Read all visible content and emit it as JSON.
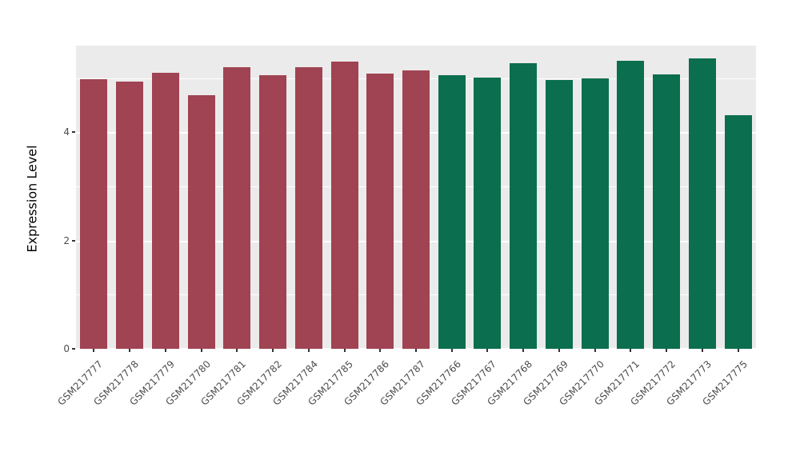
{
  "chart_data": {
    "type": "bar",
    "title": "",
    "xlabel": "",
    "ylabel": "Expression Level",
    "ylim": [
      0,
      5.6
    ],
    "yticks": [
      0,
      2,
      4
    ],
    "yminor": [
      1,
      3,
      5
    ],
    "grid": true,
    "legend_position": "none",
    "panel_background": "#EBEBEB",
    "grid_color": "#FFFFFF",
    "categories": [
      "GSM217777",
      "GSM217778",
      "GSM217779",
      "GSM217780",
      "GSM217781",
      "GSM217782",
      "GSM217784",
      "GSM217785",
      "GSM217786",
      "GSM217787",
      "GSM217766",
      "GSM217767",
      "GSM217768",
      "GSM217769",
      "GSM217770",
      "GSM217771",
      "GSM217772",
      "GSM217773",
      "GSM217775"
    ],
    "values": [
      4.98,
      4.94,
      5.1,
      4.69,
      5.2,
      5.05,
      5.2,
      5.3,
      5.08,
      5.14,
      5.05,
      5.01,
      5.28,
      4.96,
      4.99,
      5.32,
      5.07,
      5.37,
      4.31
    ],
    "groups": [
      "red",
      "red",
      "red",
      "red",
      "red",
      "red",
      "red",
      "red",
      "red",
      "red",
      "green",
      "green",
      "green",
      "green",
      "green",
      "green",
      "green",
      "green",
      "green"
    ],
    "group_colors": {
      "red": "#A04352",
      "green": "#0B6E4E"
    }
  },
  "style": {
    "axis_text_color": "#4D4D4D",
    "axis_title_color": "#000000",
    "tick_mark_color": "#333333"
  }
}
